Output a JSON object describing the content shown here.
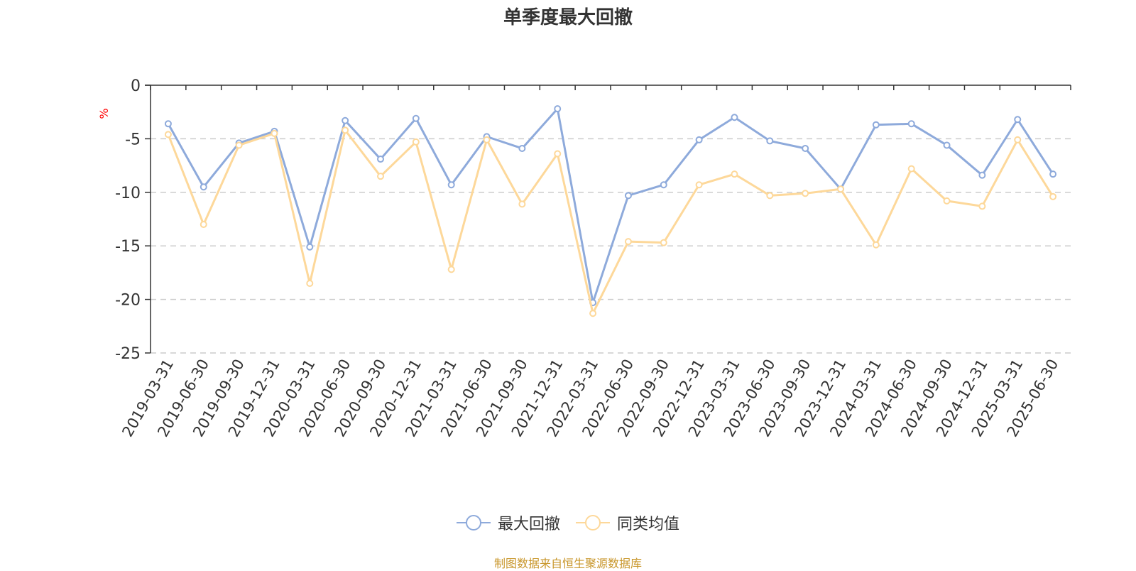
{
  "chart_data": {
    "type": "line",
    "title": "单季度最大回撤",
    "ylabel": "%",
    "ylim": [
      -25,
      0
    ],
    "yticks": [
      0,
      -5,
      -10,
      -15,
      -20,
      -25
    ],
    "grid": true,
    "legend_position": "bottom",
    "categories": [
      "2019-03-31",
      "2019-06-30",
      "2019-09-30",
      "2019-12-31",
      "2020-03-31",
      "2020-06-30",
      "2020-09-30",
      "2020-12-31",
      "2021-03-31",
      "2021-06-30",
      "2021-09-30",
      "2021-12-31",
      "2022-03-31",
      "2022-06-30",
      "2022-09-30",
      "2022-12-31",
      "2023-03-31",
      "2023-06-30",
      "2023-09-30",
      "2023-12-31",
      "2024-03-31",
      "2024-06-30",
      "2024-09-30",
      "2024-12-31",
      "2025-03-31",
      "2025-06-30"
    ],
    "series": [
      {
        "name": "最大回撤",
        "color": "#8eaadb",
        "values": [
          -3.6,
          -9.5,
          -5.4,
          -4.3,
          -15.1,
          -3.3,
          -6.9,
          -3.1,
          -9.3,
          -4.8,
          -5.9,
          -2.2,
          -20.3,
          -10.3,
          -9.3,
          -5.1,
          -3.0,
          -5.2,
          -5.9,
          -9.7,
          -3.7,
          -3.6,
          -5.6,
          -8.4,
          -3.2,
          -8.3
        ]
      },
      {
        "name": "同类均值",
        "color": "#fdd89a",
        "values": [
          -4.6,
          -13.0,
          -5.6,
          -4.5,
          -18.5,
          -4.2,
          -8.5,
          -5.3,
          -17.2,
          -5.1,
          -11.1,
          -6.4,
          -21.3,
          -14.6,
          -14.7,
          -9.3,
          -8.3,
          -10.3,
          -10.1,
          -9.7,
          -14.9,
          -7.8,
          -10.8,
          -11.3,
          -5.1,
          -10.4
        ]
      }
    ]
  },
  "source_note": "制图数据来自恒生聚源数据库"
}
